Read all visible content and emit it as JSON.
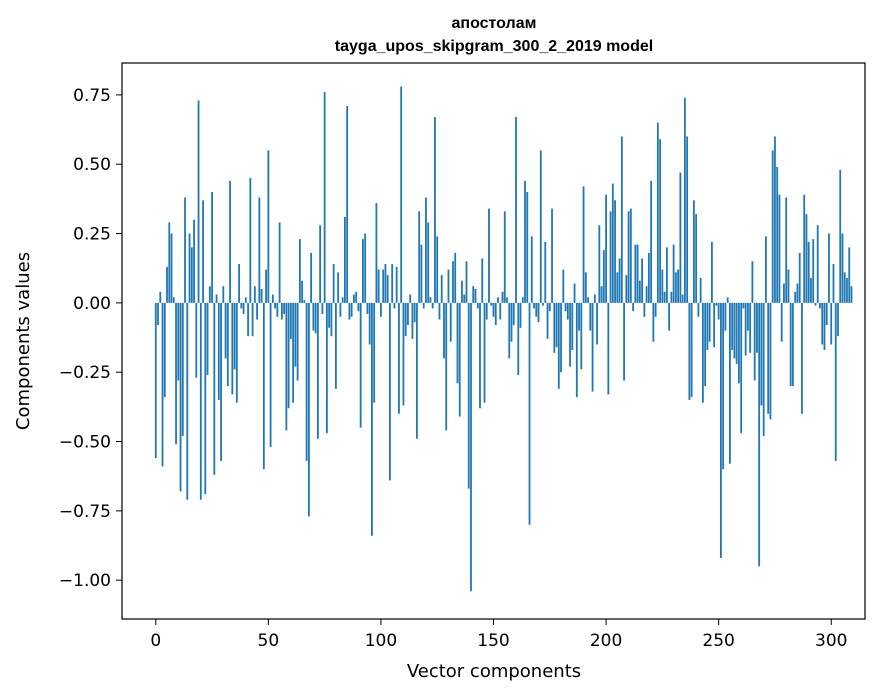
{
  "chart_data": {
    "type": "bar",
    "title": "апостолам",
    "subtitle": "tayga_upos_skipgram_300_2_2019 model",
    "xlabel": "Vector components",
    "ylabel": "Components values",
    "xlim": [
      -15,
      315
    ],
    "ylim": [
      -1.14,
      0.865
    ],
    "xticks": [
      0,
      50,
      100,
      150,
      200,
      250,
      300
    ],
    "xtick_labels": [
      "0",
      "50",
      "100",
      "150",
      "200",
      "250",
      "300"
    ],
    "yticks": [
      -1.0,
      -0.75,
      -0.5,
      -0.25,
      0.0,
      0.25,
      0.5,
      0.75
    ],
    "ytick_labels": [
      "−1.00",
      "−0.75",
      "−0.50",
      "−0.25",
      "0.00",
      "0.25",
      "0.50",
      "0.75"
    ],
    "grid": false,
    "bar_color": "#1f77b4",
    "values": [
      -0.56,
      -0.08,
      0.04,
      -0.59,
      -0.34,
      0.13,
      0.29,
      0.25,
      0.02,
      -0.51,
      -0.28,
      -0.68,
      -0.48,
      0.38,
      -0.71,
      0.25,
      0.2,
      0.3,
      -0.27,
      0.73,
      -0.71,
      0.37,
      -0.69,
      -0.26,
      0.06,
      0.4,
      -0.62,
      0.03,
      -0.35,
      -0.57,
      0.06,
      -0.2,
      -0.3,
      0.44,
      -0.33,
      -0.24,
      -0.36,
      0.14,
      -0.02,
      -0.04,
      0.02,
      -0.12,
      0.45,
      -0.12,
      0.06,
      -0.06,
      0.38,
      0.05,
      -0.6,
      0.12,
      0.55,
      -0.52,
      0.03,
      -0.02,
      -0.05,
      0.29,
      -0.06,
      -0.04,
      -0.46,
      -0.38,
      -0.13,
      -0.36,
      -0.23,
      -0.28,
      0.23,
      0.08,
      0.01,
      -0.57,
      -0.77,
      0.18,
      -0.1,
      -0.11,
      -0.49,
      0.28,
      -0.04,
      0.76,
      -0.47,
      -0.09,
      -0.12,
      0.14,
      -0.31,
      0.11,
      -0.05,
      0.02,
      0.31,
      0.71,
      -0.06,
      -0.05,
      0.03,
      0.04,
      -0.03,
      -0.45,
      0.23,
      0.25,
      -0.04,
      -0.15,
      -0.84,
      -0.36,
      0.36,
      0.12,
      -0.05,
      0.12,
      0.14,
      0.1,
      -0.64,
      0.14,
      -0.02,
      0.13,
      -0.4,
      0.78,
      -0.37,
      -0.12,
      -0.08,
      0.03,
      -0.13,
      -0.07,
      -0.49,
      0.33,
      0.21,
      -0.02,
      0.38,
      0.29,
      0.02,
      -0.02,
      0.67,
      0.24,
      -0.06,
      0.1,
      -0.2,
      -0.46,
      0.12,
      -0.14,
      0.15,
      0.18,
      -0.29,
      -0.41,
      0.08,
      0.03,
      0.15,
      -0.67,
      -1.04,
      0.06,
      0.05,
      -0.02,
      -0.38,
      0.16,
      -0.36,
      -0.06,
      0.34,
      -0.01,
      -0.05,
      -0.08,
      0.02,
      -0.06,
      0.04,
      0.33,
      0.02,
      -0.2,
      -0.14,
      -0.08,
      0.67,
      -0.26,
      -0.09,
      0.02,
      0.44,
      0.4,
      -0.8,
      0.24,
      -0.02,
      -0.05,
      -0.07,
      0.55,
      -0.01,
      0.22,
      -0.13,
      -0.03,
      0.34,
      -0.18,
      -0.16,
      -0.31,
      -0.25,
      0.12,
      -0.03,
      -0.06,
      -0.23,
      -0.17,
      0.07,
      -0.34,
      -0.1,
      -0.24,
      0.42,
      0.11,
      0.02,
      -0.1,
      -0.32,
      0.03,
      -0.15,
      0.28,
      0.06,
      0.19,
      0.39,
      -0.33,
      0.33,
      0.43,
      0.37,
      0.11,
      0.16,
      0.6,
      -0.28,
      0.1,
      0.33,
      0.34,
      -0.03,
      0.21,
      0.21,
      0.08,
      0.16,
      -0.05,
      0.06,
      0.18,
      0.44,
      -0.14,
      -0.05,
      0.65,
      0.59,
      0.12,
      0.04,
      0.2,
      -0.1,
      0.04,
      0.21,
      0.11,
      0.12,
      0.47,
      0.03,
      0.74,
      0.6,
      -0.35,
      -0.34,
      0.37,
      0.32,
      -0.05,
      0.09,
      -0.36,
      -0.3,
      -0.17,
      -0.14,
      0.22,
      -0.16,
      -0.01,
      -0.06,
      -0.92,
      -0.6,
      -0.1,
      0.02,
      -0.58,
      -0.17,
      -0.2,
      -0.22,
      -0.29,
      -0.47,
      -0.02,
      -0.19,
      -0.1,
      -0.18,
      0.15,
      -0.28,
      -0.18,
      -0.95,
      -0.37,
      -0.48,
      0.24,
      -0.4,
      -0.42,
      0.55,
      0.6,
      0.49,
      0.39,
      -0.14,
      0.07,
      0.38,
      0.12,
      -0.3,
      -0.3,
      0.04,
      0.07,
      0.18,
      -0.4,
      0.39,
      0.32,
      0.22,
      0.09,
      0.23,
      -0.01,
      0.28,
      -0.02,
      -0.15,
      -0.17,
      -0.08,
      0.25,
      -0.15,
      0.14,
      -0.57,
      -0.12,
      0.48,
      0.25,
      0.11,
      0.09,
      0.2,
      0.06
    ]
  }
}
